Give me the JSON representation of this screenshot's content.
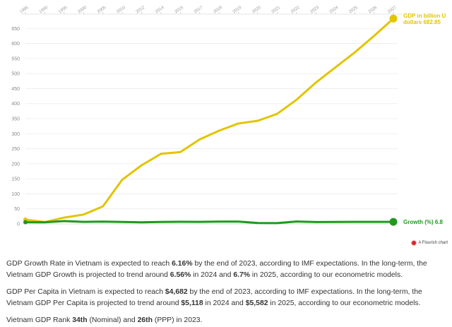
{
  "chart_data": {
    "type": "line",
    "x": [
      "1985",
      "1990",
      "1995",
      "2000",
      "2005",
      "2010",
      "2012",
      "2014",
      "2015",
      "2017",
      "2018",
      "2019",
      "2020",
      "2021",
      "2022",
      "2023",
      "2024",
      "2025",
      "2026",
      "2027"
    ],
    "ylim": [
      0,
      700
    ],
    "yticks": [
      0,
      50,
      100,
      150,
      200,
      250,
      300,
      350,
      400,
      450,
      500,
      550,
      600,
      650
    ],
    "grid": true,
    "series": [
      {
        "name": "GDP in billion USD dollars",
        "color": "#e2c400",
        "values": [
          14,
          6,
          21,
          31,
          58,
          147,
          195,
          233,
          239,
          281,
          310,
          334,
          343,
          366,
          413,
          470,
          520,
          570,
          625,
          682.85
        ],
        "end_label_lines": [
          "GDP in billion U",
          "dollars 682.85"
        ]
      },
      {
        "name": "Growth (%)",
        "color": "#1f9a1f",
        "values": [
          5.6,
          5.1,
          9.5,
          6.8,
          7.5,
          6.4,
          5.5,
          6.4,
          7.0,
          6.9,
          7.5,
          7.4,
          2.9,
          2.6,
          8.0,
          6.2,
          6.56,
          6.7,
          6.8,
          6.8
        ],
        "end_label_lines": [
          "Growth (%) 6.8"
        ]
      }
    ]
  },
  "credit": {
    "text": "A Flourish chart"
  },
  "text": {
    "p1": {
      "a": "GDP Growth Rate in Vietnam is expected to reach ",
      "b1": "6.16%",
      "c": " by the end of 2023, according to IMF expectations. In the long-term, the Vietnam GDP Growth is projected to trend around ",
      "b2": "6.56%",
      "d": " in 2024 and ",
      "b3": "6.7%",
      "e": " in 2025, according to our econometric models."
    },
    "p2": {
      "a": "GDP Per Capita in Vietnam is expected to reach ",
      "b1": "$4,682",
      "c": " by the end of 2023, according to IMF expectations. In the long-term, the Vietnam GDP Per Capita is projected to trend around ",
      "b2": "$5,118",
      "d": " in 2024 and ",
      "b3": "$5,582",
      "e": " in 2025, according to our econometric models."
    },
    "p3": {
      "a": "Vietnam GDP Rank ",
      "b1": "34th",
      "c": " (Nominal) and ",
      "b2": "26th",
      "d": " (PPP) in 2023."
    }
  }
}
